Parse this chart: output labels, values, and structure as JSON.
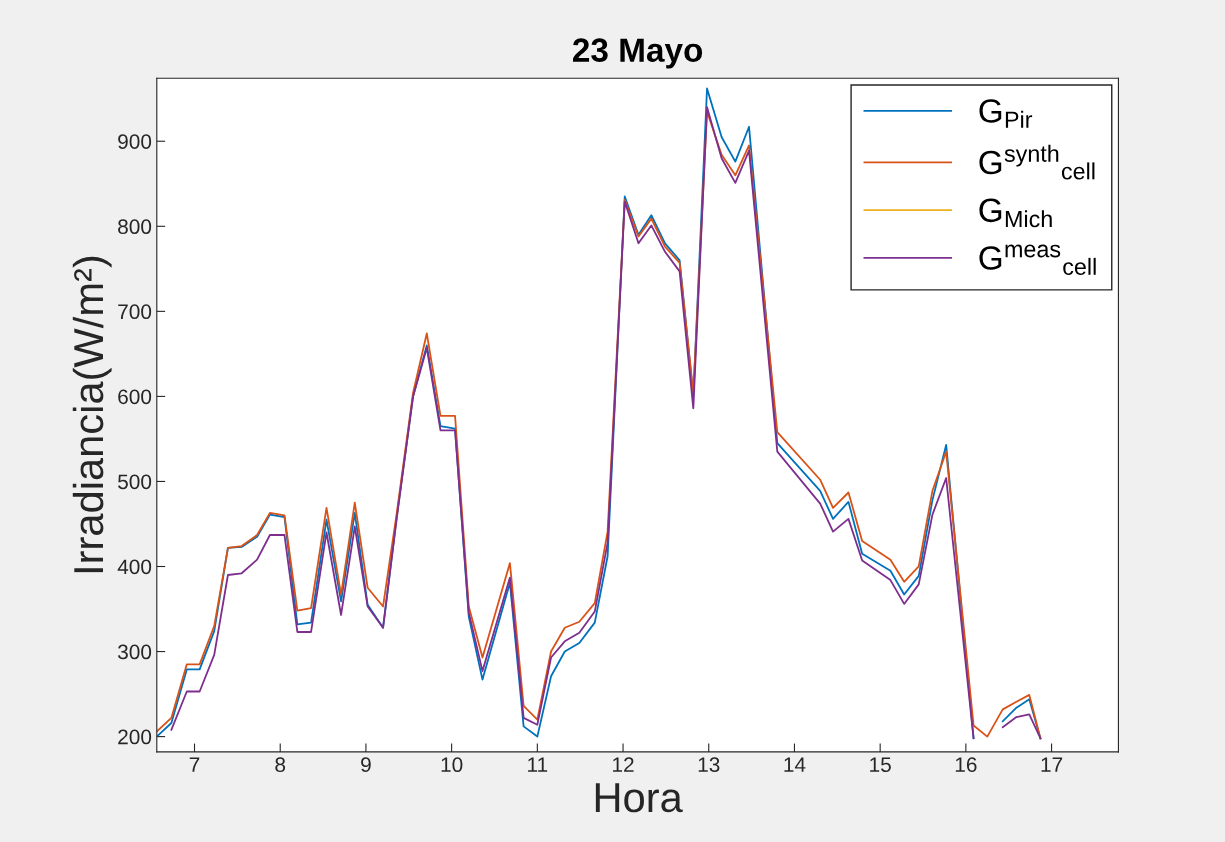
{
  "chart_data": {
    "type": "line",
    "title": "23 Mayo",
    "xlabel": "Hora",
    "ylabel": "Irradiancia(W/m²)",
    "x": [
      6.56,
      6.73,
      6.91,
      7.06,
      7.23,
      7.39,
      7.55,
      7.73,
      7.88,
      8.05,
      8.2,
      8.36,
      8.54,
      8.71,
      8.87,
      9.02,
      9.2,
      9.36,
      9.55,
      9.71,
      9.87,
      10.04,
      10.2,
      10.36,
      10.68,
      10.84,
      11.0,
      11.16,
      11.32,
      11.49,
      11.67,
      11.82,
      12.02,
      12.18,
      12.33,
      12.49,
      12.66,
      12.82,
      12.98,
      13.15,
      13.31,
      13.47,
      13.8,
      14.3,
      14.45,
      14.63,
      14.79,
      15.12,
      15.28,
      15.45,
      15.61,
      15.77,
      16.09,
      16.25,
      16.43,
      16.59,
      16.74,
      16.87
    ],
    "series": [
      {
        "name": "G$_{Pir}$",
        "color": "#0072bd",
        "values": [
          200,
          216,
          279,
          279,
          324,
          422,
          423,
          435,
          461,
          458,
          332,
          334,
          455,
          359,
          463,
          355,
          328,
          459,
          600,
          660,
          565,
          562,
          341,
          267,
          381,
          212,
          200,
          271,
          300,
          310,
          334,
          412,
          835,
          790,
          813,
          780,
          760,
          600,
          962,
          905,
          876,
          917,
          545,
          489,
          456,
          476,
          415,
          395,
          367,
          389,
          478,
          543,
          198,
          null,
          218,
          234,
          244,
          198
        ]
      },
      {
        "name": "G$^{synth}$$_{cell}$",
        "color": "#d95319",
        "values": [
          206,
          222,
          285,
          285,
          330,
          422,
          424,
          437,
          463,
          460,
          348,
          351,
          469,
          367,
          475,
          375,
          353,
          463,
          604,
          674,
          577,
          577,
          353,
          293,
          404,
          236,
          220,
          300,
          328,
          335,
          357,
          441,
          831,
          788,
          809,
          776,
          757,
          604,
          935,
          884,
          860,
          895,
          558,
          502,
          469,
          487,
          430,
          408,
          382,
          400,
          489,
          535,
          213,
          200,
          232,
          241,
          249,
          198
        ]
      },
      {
        "name": "G$_{Mich}$",
        "color": "#edb120",
        "values": [
          null,
          null,
          null,
          null,
          null,
          null,
          null,
          null,
          null,
          null,
          null,
          null,
          null,
          null,
          null,
          null,
          null,
          null,
          null,
          null,
          null,
          null,
          null,
          null,
          null,
          null,
          null,
          null,
          null,
          null,
          null,
          null,
          null,
          null,
          null,
          null,
          null,
          null,
          null,
          null,
          null,
          null,
          null,
          null,
          null,
          null,
          null,
          null,
          null,
          null,
          null,
          null,
          null,
          null,
          null,
          null,
          null,
          null
        ]
      },
      {
        "name": "G$^{meas}$$_{cell}$",
        "color": "#7e2f8e",
        "values": [
          null,
          208,
          253,
          253,
          296,
          390,
          392,
          408,
          437,
          437,
          323,
          323,
          440,
          343,
          447,
          353,
          328,
          457,
          600,
          657,
          560,
          560,
          346,
          277,
          387,
          222,
          214,
          293,
          312,
          322,
          347,
          428,
          829,
          780,
          801,
          770,
          747,
          586,
          940,
          880,
          851,
          889,
          535,
          474,
          441,
          456,
          407,
          384,
          356,
          379,
          461,
          504,
          198,
          null,
          211,
          223,
          226,
          198
        ]
      }
    ],
    "xlim": [
      6.56,
      17.78
    ],
    "xticks": [
      7,
      8,
      9,
      10,
      11,
      12,
      13,
      14,
      15,
      16,
      17
    ],
    "ylim": [
      182,
      974
    ],
    "yticks": [
      200,
      300,
      400,
      500,
      600,
      700,
      800,
      900
    ],
    "grid": false,
    "legend": "top right",
    "line_style": "solid",
    "marker": "none"
  }
}
